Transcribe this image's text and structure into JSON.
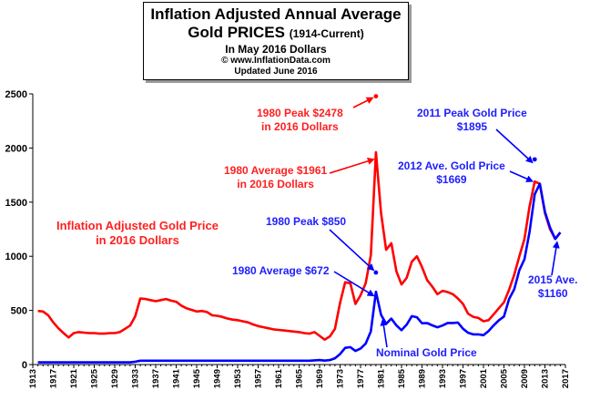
{
  "header": {
    "line1": "Inflation Adjusted Annual Average",
    "line2_main": "Gold PRICES",
    "line2_small": "(1914-Current)",
    "line3": "In May 2016 Dollars",
    "line4": "© www.InflationData.com",
    "line5": "Updated June 2016"
  },
  "annotations": {
    "red_label_1": "Inflation Adjusted Gold Price",
    "red_label_2": "in 2016 Dollars",
    "peak1980_red_1": "1980 Peak $2478",
    "peak1980_red_2": "in 2016 Dollars",
    "avg1980_red_1": "1980 Average $1961",
    "avg1980_red_2": "in 2016 Dollars",
    "peak1980_blue": "1980 Peak $850",
    "avg1980_blue": "1980 Average $672",
    "nominal_label": "Nominal Gold Price",
    "peak2011_1": "2011 Peak  Gold Price",
    "peak2011_2": "$1895",
    "avg2012_1": "2012 Ave. Gold Price",
    "avg2012_2": "$1669",
    "avg2015_1": "2015 Ave.",
    "avg2015_2": "$1160"
  },
  "colors": {
    "adjusted": "#ff0000",
    "nominal": "#0000ff",
    "arrow": "#0000ff"
  },
  "chart_data": {
    "type": "line",
    "title": "Inflation Adjusted Annual Average Gold PRICES (1914-Current)",
    "xlim": [
      1913,
      2017
    ],
    "ylim": [
      0,
      2500
    ],
    "xticks": [
      1913,
      1917,
      1921,
      1925,
      1929,
      1933,
      1937,
      1941,
      1945,
      1949,
      1953,
      1957,
      1961,
      1965,
      1969,
      1973,
      1977,
      1981,
      1985,
      1989,
      1993,
      1997,
      2001,
      2005,
      2009,
      2013,
      2017
    ],
    "yticks": [
      0,
      500,
      1000,
      1500,
      2000,
      2500
    ],
    "grid": false,
    "series": [
      {
        "name": "Inflation Adjusted Gold Price",
        "color": "#ff0000",
        "x": [
          1914,
          1915,
          1916,
          1917,
          1918,
          1919,
          1920,
          1921,
          1922,
          1923,
          1924,
          1925,
          1926,
          1927,
          1928,
          1929,
          1930,
          1931,
          1932,
          1933,
          1934,
          1935,
          1936,
          1937,
          1938,
          1939,
          1940,
          1941,
          1942,
          1943,
          1944,
          1945,
          1946,
          1947,
          1948,
          1949,
          1950,
          1951,
          1952,
          1953,
          1954,
          1955,
          1956,
          1957,
          1958,
          1959,
          1960,
          1961,
          1962,
          1963,
          1964,
          1965,
          1966,
          1967,
          1968,
          1969,
          1970,
          1971,
          1972,
          1973,
          1974,
          1975,
          1976,
          1977,
          1978,
          1979,
          1980,
          1981,
          1982,
          1983,
          1984,
          1985,
          1986,
          1987,
          1988,
          1989,
          1990,
          1991,
          1992,
          1993,
          1994,
          1995,
          1996,
          1997,
          1998,
          1999,
          2000,
          2001,
          2002,
          2003,
          2004,
          2005,
          2006,
          2007,
          2008,
          2009,
          2010,
          2011,
          2012,
          2013,
          2014,
          2015,
          2016
        ],
        "values": [
          495,
          490,
          455,
          390,
          335,
          290,
          250,
          290,
          300,
          295,
          290,
          290,
          285,
          285,
          290,
          290,
          300,
          330,
          360,
          445,
          610,
          605,
          595,
          585,
          595,
          605,
          590,
          580,
          545,
          520,
          505,
          490,
          495,
          485,
          455,
          450,
          440,
          425,
          415,
          410,
          400,
          390,
          370,
          355,
          345,
          335,
          325,
          320,
          315,
          310,
          305,
          300,
          290,
          285,
          300,
          265,
          230,
          260,
          330,
          570,
          760,
          750,
          560,
          640,
          750,
          1010,
          1961,
          1400,
          1060,
          1120,
          860,
          740,
          800,
          950,
          1000,
          900,
          780,
          720,
          650,
          680,
          670,
          650,
          610,
          560,
          470,
          440,
          430,
          400,
          410,
          465,
          520,
          575,
          690,
          830,
          1000,
          1160,
          1460,
          1690,
          1669,
          1400,
          1250,
          1160,
          1220
        ]
      },
      {
        "name": "Nominal Gold Price",
        "color": "#0000ff",
        "x": [
          1914,
          1915,
          1916,
          1917,
          1918,
          1919,
          1920,
          1921,
          1922,
          1923,
          1924,
          1925,
          1926,
          1927,
          1928,
          1929,
          1930,
          1931,
          1932,
          1933,
          1934,
          1935,
          1936,
          1937,
          1938,
          1939,
          1940,
          1941,
          1942,
          1943,
          1944,
          1945,
          1946,
          1947,
          1948,
          1949,
          1950,
          1951,
          1952,
          1953,
          1954,
          1955,
          1956,
          1957,
          1958,
          1959,
          1960,
          1961,
          1962,
          1963,
          1964,
          1965,
          1966,
          1967,
          1968,
          1969,
          1970,
          1971,
          1972,
          1973,
          1974,
          1975,
          1976,
          1977,
          1978,
          1979,
          1980,
          1981,
          1982,
          1983,
          1984,
          1985,
          1986,
          1987,
          1988,
          1989,
          1990,
          1991,
          1992,
          1993,
          1994,
          1995,
          1996,
          1997,
          1998,
          1999,
          2000,
          2001,
          2002,
          2003,
          2004,
          2005,
          2006,
          2007,
          2008,
          2009,
          2010,
          2011,
          2012,
          2013,
          2014,
          2015,
          2016
        ],
        "values": [
          20,
          20,
          20,
          20,
          20,
          20,
          20,
          20,
          20,
          20,
          20,
          20,
          20,
          20,
          20,
          20,
          20,
          20,
          20,
          26,
          35,
          35,
          35,
          35,
          35,
          35,
          35,
          35,
          35,
          35,
          35,
          35,
          35,
          35,
          35,
          35,
          35,
          35,
          35,
          35,
          35,
          35,
          35,
          35,
          35,
          35,
          35,
          35,
          35,
          35,
          35,
          35,
          35,
          35,
          39,
          41,
          36,
          41,
          58,
          97,
          154,
          161,
          125,
          148,
          193,
          306,
          672,
          460,
          376,
          424,
          361,
          317,
          368,
          447,
          437,
          381,
          383,
          362,
          344,
          360,
          384,
          384,
          388,
          331,
          294,
          279,
          279,
          271,
          310,
          363,
          409,
          444,
          604,
          695,
          872,
          972,
          1225,
          1572,
          1669,
          1411,
          1266,
          1160,
          1220
        ]
      }
    ],
    "markers": [
      {
        "x": 1980,
        "y": 2478,
        "color": "#ff0000",
        "label": "1980 Peak $2478"
      },
      {
        "x": 1980,
        "y": 850,
        "color": "#0000ff",
        "label": "1980 Peak $850"
      },
      {
        "x": 2011,
        "y": 1895,
        "color": "#0000ff",
        "label": "2011 Peak  Gold Price"
      }
    ]
  }
}
